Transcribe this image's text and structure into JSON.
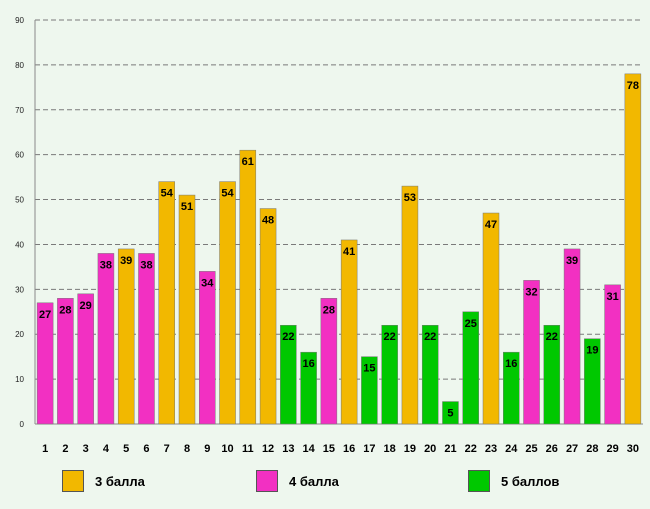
{
  "chart_data": {
    "type": "bar",
    "title": "",
    "xlabel": "",
    "ylabel": "",
    "ylim": [
      0,
      90
    ],
    "yticks": [
      0,
      10,
      20,
      30,
      40,
      50,
      60,
      70,
      80,
      90
    ],
    "grid": true,
    "legend_position": "bottom",
    "categories": [
      "1",
      "2",
      "3",
      "4",
      "5",
      "6",
      "7",
      "8",
      "9",
      "10",
      "11",
      "12",
      "13",
      "14",
      "15",
      "16",
      "17",
      "18",
      "19",
      "20",
      "21",
      "22",
      "23",
      "24",
      "25",
      "26",
      "27",
      "28",
      "29",
      "30"
    ],
    "values": [
      27,
      28,
      29,
      38,
      39,
      38,
      54,
      51,
      34,
      54,
      61,
      48,
      22,
      16,
      28,
      41,
      15,
      22,
      53,
      22,
      5,
      25,
      47,
      16,
      32,
      22,
      39,
      19,
      31,
      78
    ],
    "groups": [
      1,
      1,
      1,
      1,
      0,
      1,
      0,
      0,
      1,
      0,
      0,
      0,
      2,
      2,
      1,
      0,
      2,
      2,
      0,
      2,
      2,
      2,
      0,
      2,
      1,
      2,
      1,
      2,
      1,
      0
    ],
    "series": [
      {
        "name": "3 балла",
        "color": "#f2b800"
      },
      {
        "name": "4 балла",
        "color": "#f230c2"
      },
      {
        "name": "5 баллов",
        "color": "#00c800"
      }
    ]
  }
}
